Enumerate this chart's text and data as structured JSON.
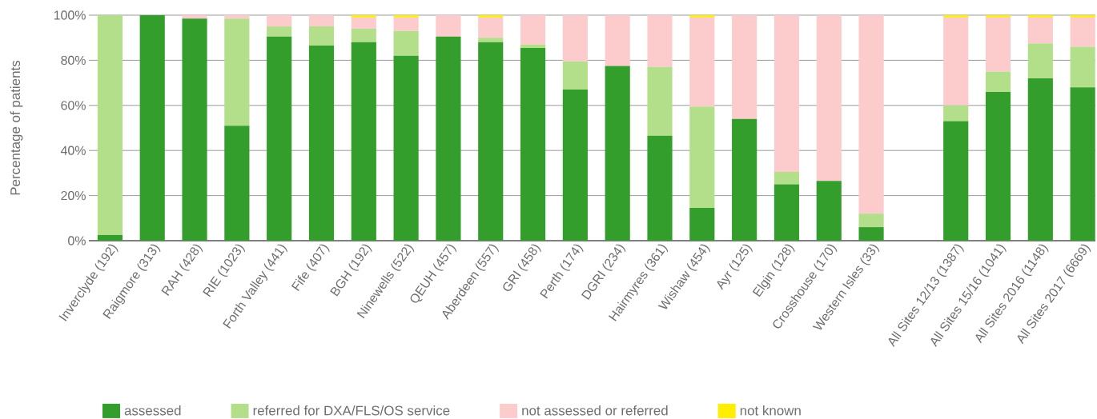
{
  "chart_data": {
    "type": "bar",
    "stacked": true,
    "ylabel": "Percentage of patients",
    "categories": [
      "Inverclyde (192)",
      "Raigmore (313)",
      "RAH (428)",
      "RIE (1023)",
      "Forth Valley (441)",
      "Fife (407)",
      "BGH (192)",
      "Ninewells (522)",
      "QEUH (457)",
      "Aberdeen (557)",
      "GRI (458)",
      "Perth (174)",
      "DGRI (234)",
      "Hairmyres (361)",
      "Wishaw (454)",
      "Ayr (125)",
      "Elgin (128)",
      "Crosshouse (170)",
      "Western Isles (33)",
      null,
      "All Sites 12/13 (1387)",
      "All Sites 15/16 (1041)",
      "All Sites 2016 (1148)",
      "All Sites 2017 (6669)"
    ],
    "series": [
      {
        "name": "assessed",
        "color": "#339e2b",
        "values": [
          2.5,
          100,
          98.5,
          51,
          90.5,
          86.5,
          88,
          82,
          90.5,
          88,
          85.5,
          67,
          77.5,
          46.5,
          14.5,
          54,
          25,
          26.5,
          6,
          null,
          53,
          66,
          72,
          68
        ]
      },
      {
        "name": "referred for DXA/FLS/OS service",
        "color": "#b3df8a",
        "values": [
          97.5,
          0,
          0,
          47.5,
          4.5,
          8.5,
          6,
          11,
          0,
          2,
          1.5,
          12.5,
          0,
          30.5,
          45,
          0,
          5.5,
          0,
          6,
          null,
          7,
          9,
          15.5,
          18
        ]
      },
      {
        "name": "not assessed or referred",
        "color": "#fccccc",
        "values": [
          0,
          0,
          1.5,
          1.5,
          5,
          5,
          5,
          6,
          9.5,
          9,
          13,
          20.5,
          22.5,
          23,
          39.5,
          46,
          69.5,
          73.5,
          88,
          null,
          39,
          24,
          11.5,
          13
        ]
      },
      {
        "name": "not known",
        "color": "#ffee00",
        "values": [
          0,
          0,
          0,
          0,
          0,
          0,
          1,
          1,
          0,
          1,
          0,
          0,
          0,
          0,
          1,
          0,
          0,
          0,
          0,
          null,
          1,
          1,
          1,
          1
        ]
      }
    ],
    "ylim": [
      0,
      100
    ],
    "yticks": [
      {
        "value": 0,
        "label": "0%"
      },
      {
        "value": 20,
        "label": "20%"
      },
      {
        "value": 40,
        "label": "40%"
      },
      {
        "value": 60,
        "label": "60%"
      },
      {
        "value": 80,
        "label": "80%"
      },
      {
        "value": 100,
        "label": "100%"
      }
    ],
    "grid": "y",
    "legend": "bottom"
  }
}
